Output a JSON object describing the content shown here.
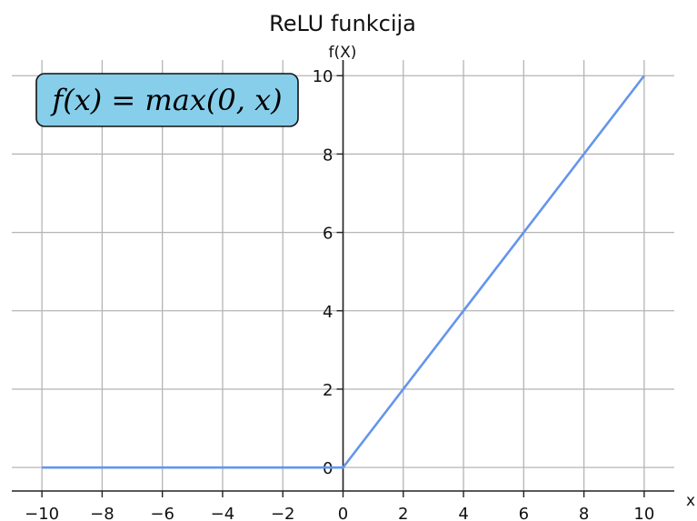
{
  "chart_data": {
    "type": "line",
    "title": "ReLU funkcija",
    "xlabel": "x",
    "ylabel": "f(X)",
    "xlim": [
      -11,
      11
    ],
    "ylim": [
      -0.6,
      10.4
    ],
    "x_ticks": [
      -10,
      -8,
      -6,
      -4,
      -2,
      0,
      2,
      4,
      6,
      8,
      10
    ],
    "x_tick_labels": [
      "−10",
      "−8",
      "−6",
      "−4",
      "−2",
      "0",
      "2",
      "4",
      "6",
      "8",
      "10"
    ],
    "y_ticks": [
      0,
      2,
      4,
      6,
      8,
      10
    ],
    "y_tick_labels": [
      "0",
      "2",
      "4",
      "6",
      "8",
      "10"
    ],
    "grid": true,
    "series": [
      {
        "x": [
          -10,
          0,
          10
        ],
        "y": [
          0,
          0,
          10
        ],
        "color": "#6495ed"
      }
    ],
    "annotation": {
      "text": "f(x) = max(0, x)",
      "placement": "top-left",
      "box_color": "#87ceeb"
    }
  }
}
